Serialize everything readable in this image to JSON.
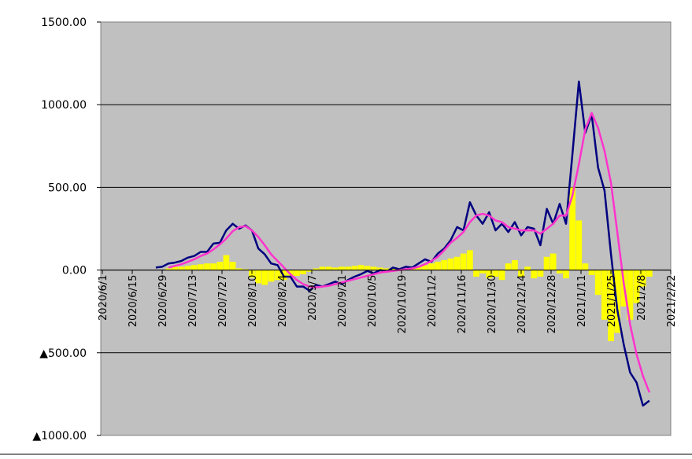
{
  "chart_data": {
    "type": "combo",
    "x": [
      "2020/6/26",
      "2020/6/29",
      "2020/7/2",
      "2020/7/5",
      "2020/7/8",
      "2020/7/11",
      "2020/7/14",
      "2020/7/17",
      "2020/7/20",
      "2020/7/23",
      "2020/7/26",
      "2020/7/29",
      "2020/8/1",
      "2020/8/4",
      "2020/8/7",
      "2020/8/10",
      "2020/8/13",
      "2020/8/16",
      "2020/8/19",
      "2020/8/22",
      "2020/8/25",
      "2020/8/28",
      "2020/8/31",
      "2020/9/3",
      "2020/9/6",
      "2020/9/9",
      "2020/9/12",
      "2020/9/15",
      "2020/9/18",
      "2020/9/21",
      "2020/9/24",
      "2020/9/27",
      "2020/9/30",
      "2020/10/3",
      "2020/10/6",
      "2020/10/9",
      "2020/10/12",
      "2020/10/15",
      "2020/10/18",
      "2020/10/21",
      "2020/10/24",
      "2020/10/27",
      "2020/10/30",
      "2020/11/2",
      "2020/11/5",
      "2020/11/8",
      "2020/11/11",
      "2020/11/14",
      "2020/11/17",
      "2020/11/20",
      "2020/11/23",
      "2020/11/26",
      "2020/11/29",
      "2020/12/2",
      "2020/12/5",
      "2020/12/8",
      "2020/12/11",
      "2020/12/14",
      "2020/12/17",
      "2020/12/20",
      "2020/12/23",
      "2020/12/26",
      "2020/12/29",
      "2021/1/1",
      "2021/1/4",
      "2021/1/7",
      "2021/1/10",
      "2021/1/13",
      "2021/1/16",
      "2021/1/19",
      "2021/1/22",
      "2021/1/25",
      "2021/1/28",
      "2021/1/31",
      "2021/2/3",
      "2021/2/6",
      "2021/2/9",
      "2021/2/12"
    ],
    "series": [
      {
        "kind": "bar",
        "color": "#ffff00",
        "values": [
          null,
          null,
          10,
          20,
          20,
          25,
          30,
          35,
          40,
          40,
          50,
          90,
          50,
          10,
          5,
          -45,
          -80,
          -90,
          -70,
          -60,
          -60,
          -40,
          -35,
          -25,
          -10,
          10,
          20,
          20,
          15,
          20,
          20,
          25,
          30,
          25,
          20,
          15,
          10,
          10,
          5,
          10,
          10,
          20,
          30,
          40,
          50,
          60,
          70,
          80,
          100,
          120,
          -40,
          -20,
          -50,
          -40,
          -60,
          40,
          60,
          -40,
          20,
          -50,
          -40,
          80,
          100,
          -20,
          -50,
          500,
          300,
          40,
          -30,
          -150,
          -300,
          -430,
          -380,
          -220,
          -300,
          -200,
          -100,
          -40
        ]
      },
      {
        "kind": "line",
        "color": "#000080",
        "values": [
          15,
          20,
          40,
          45,
          55,
          75,
          85,
          110,
          110,
          160,
          165,
          240,
          280,
          250,
          270,
          240,
          130,
          95,
          40,
          30,
          -40,
          -40,
          -100,
          -100,
          -125,
          -90,
          -100,
          -85,
          -70,
          -85,
          -60,
          -40,
          -25,
          -5,
          -20,
          0,
          -10,
          15,
          5,
          20,
          15,
          40,
          65,
          50,
          100,
          130,
          180,
          260,
          240,
          410,
          330,
          280,
          350,
          240,
          280,
          230,
          290,
          210,
          260,
          250,
          150,
          370,
          280,
          400,
          280,
          700,
          1140,
          830,
          940,
          620,
          480,
          100,
          -240,
          -450,
          -620,
          -680,
          -820,
          -790
        ]
      },
      {
        "kind": "line",
        "color": "#ff33cc",
        "values": [
          null,
          null,
          15,
          25,
          35,
          50,
          65,
          85,
          100,
          125,
          155,
          190,
          235,
          260,
          265,
          240,
          200,
          150,
          95,
          55,
          15,
          -25,
          -60,
          -85,
          -100,
          -105,
          -100,
          -95,
          -85,
          -75,
          -65,
          -55,
          -45,
          -35,
          -25,
          -15,
          -10,
          -5,
          0,
          5,
          10,
          20,
          35,
          55,
          80,
          120,
          165,
          195,
          230,
          290,
          330,
          340,
          330,
          300,
          290,
          260,
          250,
          240,
          240,
          240,
          220,
          250,
          280,
          330,
          330,
          450,
          640,
          850,
          950,
          860,
          720,
          530,
          230,
          -80,
          -330,
          -510,
          -640,
          -740
        ]
      }
    ],
    "xlim": [
      "2020/6/1",
      "2021/2/22"
    ],
    "xticks": [
      "2020/6/1",
      "2020/6/15",
      "2020/6/29",
      "2020/7/13",
      "2020/7/27",
      "2020/8/10",
      "2020/8/24",
      "2020/9/7",
      "2020/9/21",
      "2020/10/5",
      "2020/10/19",
      "2020/11/2",
      "2020/11/16",
      "2020/11/30",
      "2020/12/14",
      "2020/12/28",
      "2021/1/11",
      "2021/1/25",
      "2021/2/8",
      "2021/2/22"
    ],
    "ylim": [
      -1000,
      1500
    ],
    "yticks": [
      {
        "value": -1000,
        "label": "▲1000.00"
      },
      {
        "value": -500,
        "label": "▲500.00"
      },
      {
        "value": 0,
        "label": "0.00"
      },
      {
        "value": 500,
        "label": "500.00"
      },
      {
        "value": 1000,
        "label": "1000.00"
      },
      {
        "value": 1500,
        "label": "1500.00"
      }
    ],
    "grid": true,
    "plot_background": "#c0c0c0"
  }
}
